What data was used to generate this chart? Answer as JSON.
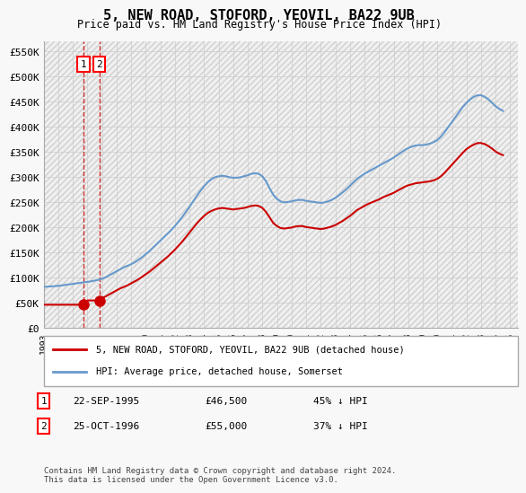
{
  "title": "5, NEW ROAD, STOFORD, YEOVIL, BA22 9UB",
  "subtitle": "Price paid vs. HM Land Registry's House Price Index (HPI)",
  "ylabel": "",
  "ylim": [
    0,
    570000
  ],
  "yticks": [
    0,
    50000,
    100000,
    150000,
    200000,
    250000,
    300000,
    350000,
    400000,
    450000,
    500000,
    550000
  ],
  "ytick_labels": [
    "£0",
    "£50K",
    "£100K",
    "£150K",
    "£200K",
    "£250K",
    "£300K",
    "£350K",
    "£400K",
    "£450K",
    "£500K",
    "£550K"
  ],
  "hpi_color": "#6699cc",
  "price_color": "#cc0000",
  "bg_color": "#f0f0f0",
  "plot_bg": "#ffffff",
  "grid_color": "#cccccc",
  "sale1_date": 1995.73,
  "sale1_price": 46500,
  "sale2_date": 1996.82,
  "sale2_price": 55000,
  "legend1": "5, NEW ROAD, STOFORD, YEOVIL, BA22 9UB (detached house)",
  "legend2": "HPI: Average price, detached house, Somerset",
  "table_row1": [
    "1",
    "22-SEP-1995",
    "£46,500",
    "45% ↓ HPI"
  ],
  "table_row2": [
    "2",
    "25-OCT-1996",
    "£55,000",
    "37% ↓ HPI"
  ],
  "footer": "Contains HM Land Registry data © Crown copyright and database right 2024.\nThis data is licensed under the Open Government Licence v3.0.",
  "hpi_years": [
    1993,
    1993.25,
    1993.5,
    1993.75,
    1994,
    1994.25,
    1994.5,
    1994.75,
    1995,
    1995.25,
    1995.5,
    1995.75,
    1996,
    1996.25,
    1996.5,
    1996.75,
    1997,
    1997.25,
    1997.5,
    1997.75,
    1998,
    1998.25,
    1998.5,
    1998.75,
    1999,
    1999.25,
    1999.5,
    1999.75,
    2000,
    2000.25,
    2000.5,
    2000.75,
    2001,
    2001.25,
    2001.5,
    2001.75,
    2002,
    2002.25,
    2002.5,
    2002.75,
    2003,
    2003.25,
    2003.5,
    2003.75,
    2004,
    2004.25,
    2004.5,
    2004.75,
    2005,
    2005.25,
    2005.5,
    2005.75,
    2006,
    2006.25,
    2006.5,
    2006.75,
    2007,
    2007.25,
    2007.5,
    2007.75,
    2008,
    2008.25,
    2008.5,
    2008.75,
    2009,
    2009.25,
    2009.5,
    2009.75,
    2010,
    2010.25,
    2010.5,
    2010.75,
    2011,
    2011.25,
    2011.5,
    2011.75,
    2012,
    2012.25,
    2012.5,
    2012.75,
    2013,
    2013.25,
    2013.5,
    2013.75,
    2014,
    2014.25,
    2014.5,
    2014.75,
    2015,
    2015.25,
    2015.5,
    2015.75,
    2016,
    2016.25,
    2016.5,
    2016.75,
    2017,
    2017.25,
    2017.5,
    2017.75,
    2018,
    2018.25,
    2018.5,
    2018.75,
    2019,
    2019.25,
    2019.5,
    2019.75,
    2020,
    2020.25,
    2020.5,
    2020.75,
    2021,
    2021.25,
    2021.5,
    2021.75,
    2022,
    2022.25,
    2022.5,
    2022.75,
    2023,
    2023.25,
    2023.5,
    2023.75,
    2024,
    2024.25,
    2024.5
  ],
  "hpi_values": [
    82000,
    82500,
    83000,
    83500,
    84000,
    85000,
    86000,
    87000,
    88000,
    89000,
    90000,
    91000,
    92000,
    93000,
    94500,
    96000,
    98000,
    101000,
    105000,
    109000,
    113000,
    117000,
    121000,
    124000,
    127000,
    131000,
    136000,
    141000,
    147000,
    153000,
    160000,
    167000,
    174000,
    181000,
    188000,
    195000,
    203000,
    212000,
    221000,
    231000,
    241000,
    252000,
    263000,
    273000,
    282000,
    290000,
    296000,
    300000,
    302000,
    303000,
    302000,
    300000,
    299000,
    299000,
    300000,
    302000,
    304000,
    307000,
    308000,
    307000,
    302000,
    292000,
    278000,
    265000,
    257000,
    252000,
    250000,
    251000,
    252000,
    254000,
    255000,
    255000,
    253000,
    252000,
    251000,
    250000,
    249000,
    250000,
    252000,
    255000,
    259000,
    264000,
    270000,
    276000,
    283000,
    290000,
    297000,
    302000,
    307000,
    311000,
    315000,
    319000,
    323000,
    327000,
    331000,
    335000,
    339000,
    344000,
    349000,
    354000,
    358000,
    361000,
    363000,
    364000,
    364000,
    365000,
    367000,
    370000,
    374000,
    381000,
    390000,
    400000,
    410000,
    420000,
    430000,
    440000,
    448000,
    455000,
    460000,
    463000,
    463000,
    460000,
    455000,
    448000,
    441000,
    436000,
    432000
  ],
  "price_years": [
    1993,
    1993.25,
    1993.5,
    1993.75,
    1994,
    1994.25,
    1994.5,
    1994.75,
    1995,
    1995.25,
    1995.5,
    1995.75,
    1996,
    1996.25,
    1996.5,
    1996.75,
    1997,
    1997.25,
    1997.5,
    1997.75,
    1998,
    1998.25,
    1998.5,
    1998.75,
    1999,
    1999.25,
    1999.5,
    1999.75,
    2000,
    2000.25,
    2000.5,
    2000.75,
    2001,
    2001.25,
    2001.5,
    2001.75,
    2002,
    2002.25,
    2002.5,
    2002.75,
    2003,
    2003.25,
    2003.5,
    2003.75,
    2004,
    2004.25,
    2004.5,
    2004.75,
    2005,
    2005.25,
    2005.5,
    2005.75,
    2006,
    2006.25,
    2006.5,
    2006.75,
    2007,
    2007.25,
    2007.5,
    2007.75,
    2008,
    2008.25,
    2008.5,
    2008.75,
    2009,
    2009.25,
    2009.5,
    2009.75,
    2010,
    2010.25,
    2010.5,
    2010.75,
    2011,
    2011.25,
    2011.5,
    2011.75,
    2012,
    2012.25,
    2012.5,
    2012.75,
    2013,
    2013.25,
    2013.5,
    2013.75,
    2014,
    2014.25,
    2014.5,
    2014.75,
    2015,
    2015.25,
    2015.5,
    2015.75,
    2016,
    2016.25,
    2016.5,
    2016.75,
    2017,
    2017.25,
    2017.5,
    2017.75,
    2018,
    2018.25,
    2018.5,
    2018.75,
    2019,
    2019.25,
    2019.5,
    2019.75,
    2020,
    2020.25,
    2020.5,
    2020.75,
    2021,
    2021.25,
    2021.5,
    2021.75,
    2022,
    2022.25,
    2022.5,
    2022.75,
    2023,
    2023.25,
    2023.5,
    2023.75,
    2024,
    2024.25,
    2024.5
  ],
  "price_values": [
    46500,
    46500,
    46500,
    46500,
    46500,
    46500,
    46500,
    46500,
    46500,
    46500,
    46500,
    46500,
    55000,
    55000,
    55000,
    55000,
    60000,
    63000,
    67000,
    71000,
    75000,
    79000,
    82000,
    85000,
    89000,
    93000,
    97000,
    102000,
    107000,
    112000,
    118000,
    124000,
    130000,
    136000,
    142000,
    149000,
    156000,
    164000,
    172000,
    181000,
    190000,
    199000,
    208000,
    216000,
    223000,
    229000,
    233000,
    236000,
    238000,
    239000,
    238000,
    237000,
    236000,
    237000,
    238000,
    239000,
    241000,
    243000,
    244000,
    243000,
    239000,
    231000,
    220000,
    209000,
    203000,
    199000,
    198000,
    199000,
    200000,
    202000,
    203000,
    203000,
    201000,
    200000,
    199000,
    198000,
    197000,
    198000,
    200000,
    202000,
    205000,
    209000,
    213000,
    218000,
    223000,
    229000,
    235000,
    239000,
    243000,
    247000,
    250000,
    253000,
    256000,
    260000,
    263000,
    266000,
    269000,
    273000,
    277000,
    281000,
    284000,
    286000,
    288000,
    289000,
    290000,
    291000,
    292000,
    294000,
    297000,
    302000,
    309000,
    317000,
    325000,
    333000,
    341000,
    349000,
    356000,
    361000,
    365000,
    368000,
    368000,
    366000,
    362000,
    357000,
    351000,
    347000,
    344000
  ],
  "xlim": [
    1993,
    2025.5
  ],
  "xticks": [
    1993,
    1994,
    1995,
    1996,
    1997,
    1998,
    1999,
    2000,
    2001,
    2002,
    2003,
    2004,
    2005,
    2006,
    2007,
    2008,
    2009,
    2010,
    2011,
    2012,
    2013,
    2014,
    2015,
    2016,
    2017,
    2018,
    2019,
    2020,
    2021,
    2022,
    2023,
    2024,
    2025
  ]
}
